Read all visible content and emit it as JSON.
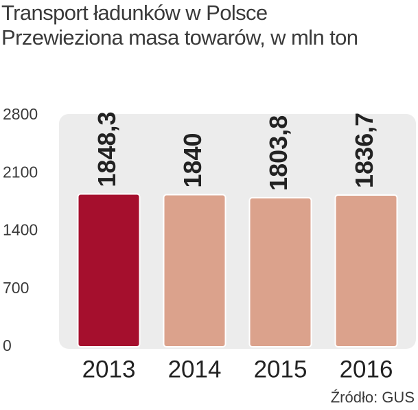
{
  "chart_data": {
    "type": "bar",
    "title": "Transport ładunków w Polsce",
    "subtitle": "Przewieziona masa towarów, w mln ton",
    "categories": [
      "2013",
      "2014",
      "2015",
      "2016"
    ],
    "values": [
      1848.3,
      1840,
      1803.8,
      1836.7
    ],
    "value_labels": [
      "1848,3",
      "1840",
      "1803,8",
      "1836,7"
    ],
    "colors": [
      "#a50f2d",
      "#dba28c",
      "#dba28c",
      "#dba28c"
    ],
    "ylim": [
      0,
      2800
    ],
    "yticks": [
      0,
      700,
      1400,
      2100,
      2800
    ],
    "grid": false,
    "source": "Źródło: GUS"
  }
}
